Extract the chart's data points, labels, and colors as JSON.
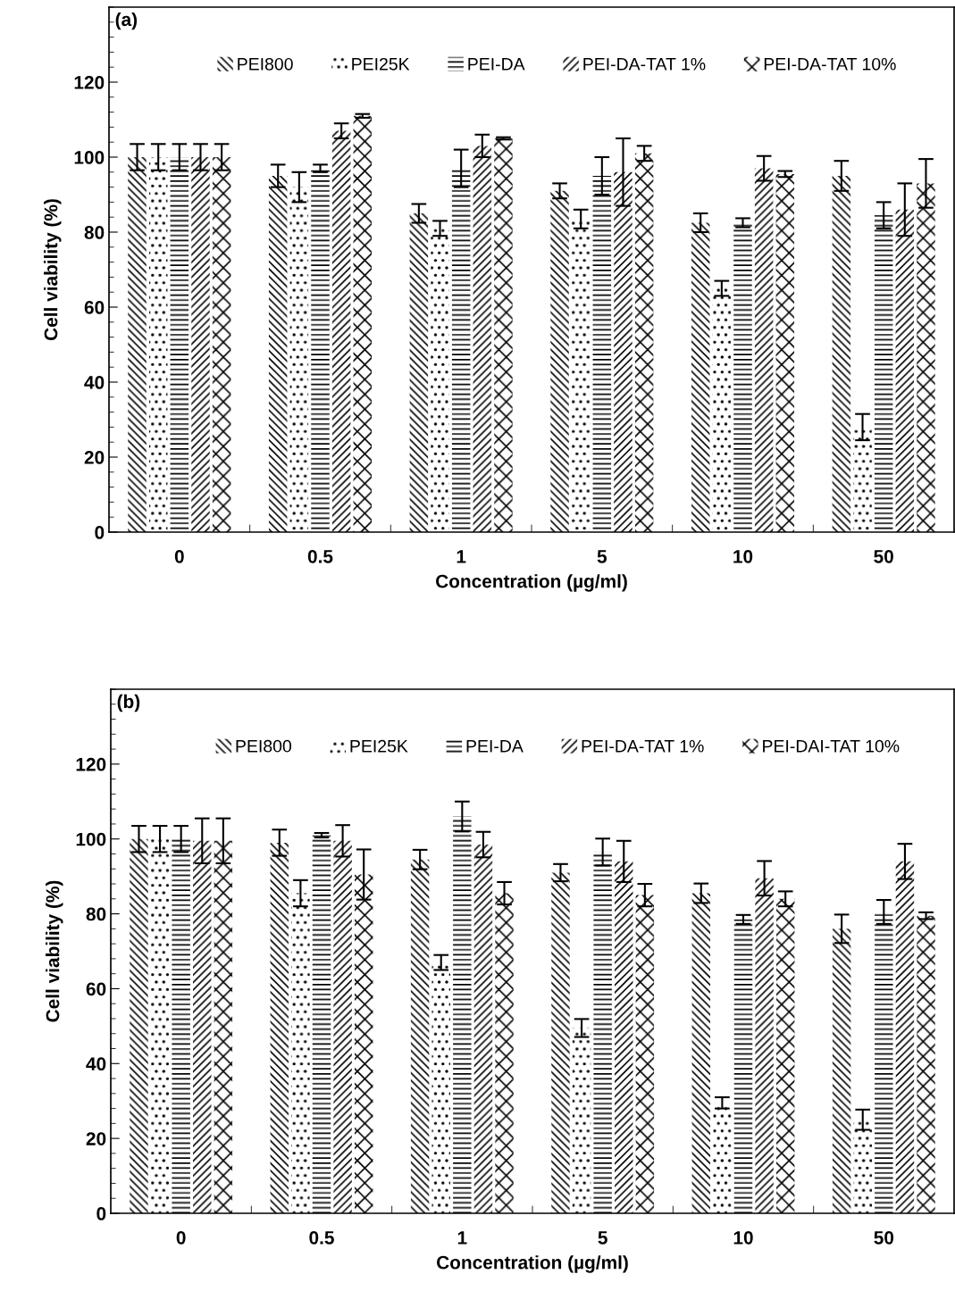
{
  "chart_data": [
    {
      "type": "bar",
      "annotations": [
        "(a)"
      ],
      "xlabel": "Concentration (µg/ml)",
      "ylabel": "Cell viability (%)",
      "categories": [
        "0",
        "0.5",
        "1",
        "5",
        "10",
        "50"
      ],
      "ylim": [
        0,
        140
      ],
      "yticks": [
        0,
        20,
        40,
        60,
        80,
        100,
        120
      ],
      "grid": false,
      "legend": "top",
      "series": [
        {
          "name": "PEI800",
          "color": "#000000",
          "values": [
            100,
            95,
            85,
            91,
            82.5,
            95
          ],
          "errors": [
            3.5,
            3,
            2.5,
            2,
            2.5,
            4
          ]
        },
        {
          "name": "PEI25K",
          "color": "#000000",
          "values": [
            100,
            92,
            81,
            83.5,
            65,
            28
          ],
          "errors": [
            3.5,
            4,
            2,
            2.5,
            2,
            3.5
          ]
        },
        {
          "name": "PEI-DA",
          "color": "#000000",
          "values": [
            100,
            97,
            97,
            95,
            82.5,
            84.5
          ],
          "errors": [
            3.5,
            1,
            5,
            5,
            1.2,
            3.5
          ]
        },
        {
          "name": "PEI-DA-TAT 1%",
          "color": "#000000",
          "values": [
            100,
            107,
            103,
            96,
            97,
            86
          ],
          "errors": [
            3.5,
            2,
            3,
            9,
            3.3,
            7
          ]
        },
        {
          "name": "PEI-DA-TAT 10%",
          "color": "#000000",
          "values": [
            100,
            111,
            105,
            101,
            95.5,
            93
          ],
          "errors": [
            3.5,
            0.5,
            0.3,
            2,
            0.8,
            6.5
          ]
        }
      ]
    },
    {
      "type": "bar",
      "annotations": [
        "(b)"
      ],
      "xlabel": "Concentration (µg/ml)",
      "ylabel": "Cell viability (%)",
      "categories": [
        "0",
        "0.5",
        "1",
        "5",
        "10",
        "50"
      ],
      "ylim": [
        0,
        140
      ],
      "yticks": [
        0,
        20,
        40,
        60,
        80,
        100,
        120
      ],
      "grid": false,
      "legend": "top",
      "series": [
        {
          "name": "PEI800",
          "color": "#000000",
          "values": [
            100,
            99,
            94.5,
            91,
            85.5,
            76
          ],
          "errors": [
            3.5,
            3.5,
            2.6,
            2.3,
            2.6,
            3.8
          ]
        },
        {
          "name": "PEI25K",
          "color": "#000000",
          "values": [
            100,
            85.5,
            67,
            49.5,
            29.5,
            25
          ],
          "errors": [
            3.5,
            3.5,
            2,
            2.4,
            1.5,
            2.7
          ]
        },
        {
          "name": "PEI-DA",
          "color": "#000000",
          "values": [
            100,
            101,
            106,
            96.5,
            78.5,
            80.5
          ],
          "errors": [
            3.5,
            0.6,
            4,
            3.6,
            1.2,
            3.2
          ]
        },
        {
          "name": "PEI-DA-TAT 1%",
          "color": "#000000",
          "values": [
            99.5,
            99.5,
            98.5,
            94,
            89.5,
            94
          ],
          "errors": [
            6,
            4.2,
            3.4,
            5.5,
            4.6,
            4.7
          ]
        },
        {
          "name": "PEI-DAI-TAT 10%",
          "color": "#000000",
          "values": [
            99.5,
            90.5,
            85.5,
            85,
            84,
            79.5
          ],
          "errors": [
            6,
            6.7,
            3,
            3,
            2,
            0.9
          ]
        }
      ]
    }
  ]
}
